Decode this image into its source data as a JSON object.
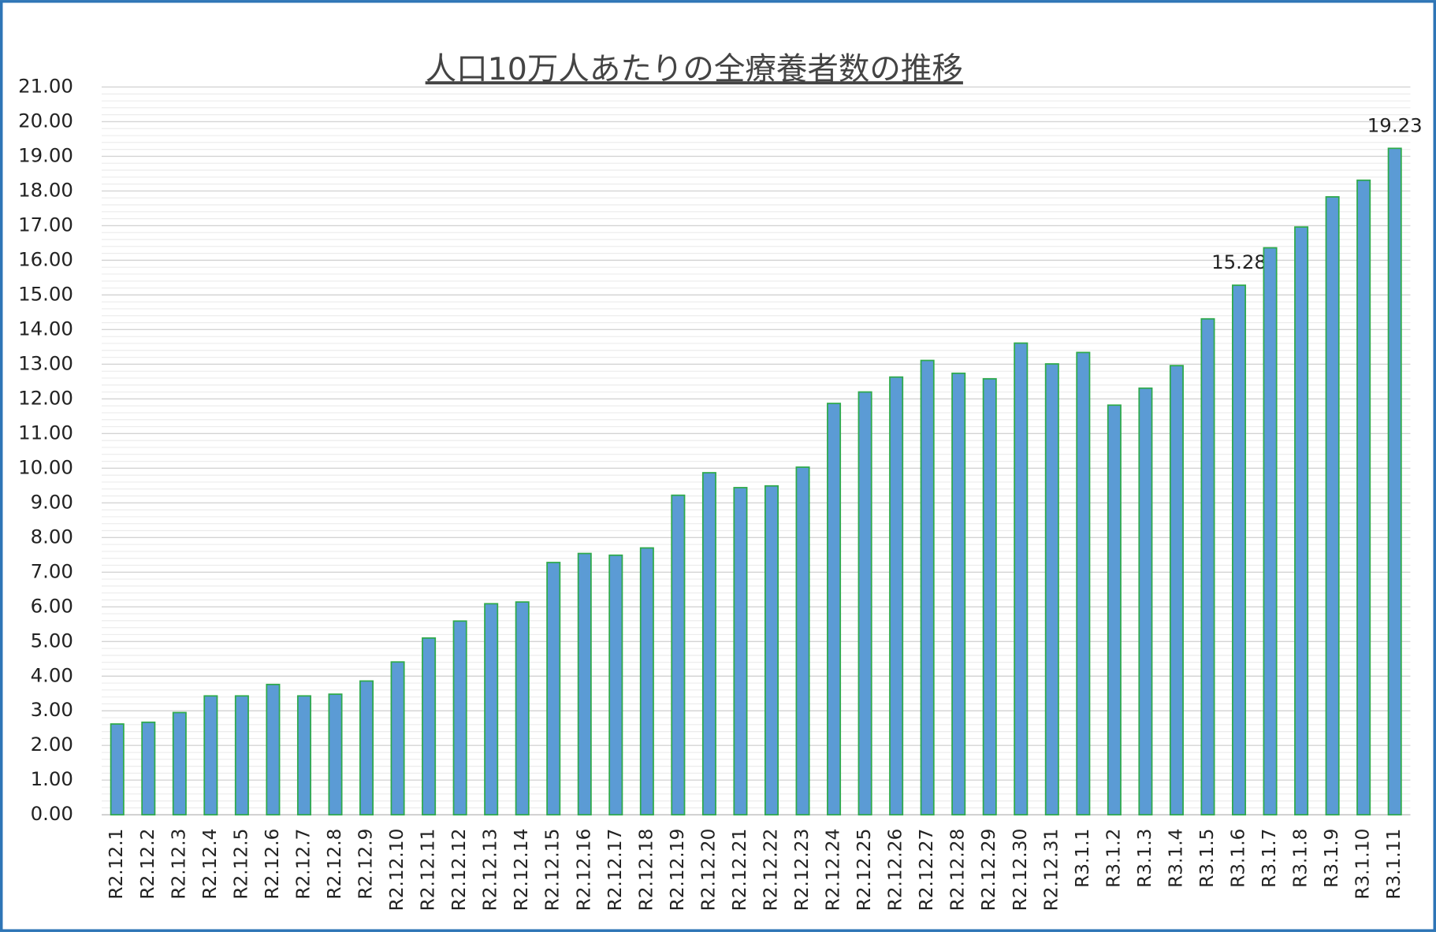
{
  "chart_data": {
    "type": "bar",
    "title": "人口10万人あたりの全療養者数の推移",
    "categories": [
      "R2.12.1",
      "R2.12.2",
      "R2.12.3",
      "R2.12.4",
      "R2.12.5",
      "R2.12.6",
      "R2.12.7",
      "R2.12.8",
      "R2.12.9",
      "R2.12.10",
      "R2.12.11",
      "R2.12.12",
      "R2.12.13",
      "R2.12.14",
      "R2.12.15",
      "R2.12.16",
      "R2.12.17",
      "R2.12.18",
      "R2.12.19",
      "R2.12.20",
      "R2.12.21",
      "R2.12.22",
      "R2.12.23",
      "R2.12.24",
      "R2.12.25",
      "R2.12.26",
      "R2.12.27",
      "R2.12.28",
      "R2.12.29",
      "R2.12.30",
      "R2.12.31",
      "R3.1.1",
      "R3.1.2",
      "R3.1.3",
      "R3.1.4",
      "R3.1.5",
      "R3.1.6",
      "R3.1.7",
      "R3.1.8",
      "R3.1.9",
      "R3.1.10",
      "R3.1.11"
    ],
    "values": [
      2.62,
      2.67,
      2.95,
      3.43,
      3.43,
      3.76,
      3.43,
      3.48,
      3.86,
      4.41,
      5.1,
      5.59,
      6.09,
      6.14,
      7.28,
      7.54,
      7.49,
      7.7,
      9.22,
      9.87,
      9.44,
      9.49,
      10.03,
      11.87,
      12.2,
      12.63,
      13.11,
      12.74,
      12.58,
      13.61,
      13.01,
      13.34,
      11.82,
      12.31,
      12.96,
      14.31,
      15.28,
      16.36,
      16.96,
      17.83,
      18.31,
      19.23
    ],
    "value_labels": [
      null,
      null,
      null,
      null,
      null,
      null,
      null,
      null,
      null,
      null,
      null,
      null,
      null,
      null,
      null,
      null,
      null,
      null,
      null,
      null,
      null,
      null,
      null,
      null,
      null,
      null,
      null,
      null,
      null,
      null,
      null,
      null,
      null,
      null,
      null,
      null,
      "15.28",
      null,
      null,
      null,
      null,
      "19.23"
    ],
    "color": "#5b9bd5",
    "edge_color": "#2eaa4a",
    "ylim": [
      0,
      21
    ],
    "yticks": [
      {
        "value": 0,
        "label": "0.00"
      },
      {
        "value": 1,
        "label": "1.00"
      },
      {
        "value": 2,
        "label": "2.00"
      },
      {
        "value": 3,
        "label": "3.00"
      },
      {
        "value": 4,
        "label": "4.00"
      },
      {
        "value": 5,
        "label": "5.00"
      },
      {
        "value": 6,
        "label": "6.00"
      },
      {
        "value": 7,
        "label": "7.00"
      },
      {
        "value": 8,
        "label": "8.00"
      },
      {
        "value": 9,
        "label": "9.00"
      },
      {
        "value": 10,
        "label": "10.00"
      },
      {
        "value": 11,
        "label": "11.00"
      },
      {
        "value": 12,
        "label": "12.00"
      },
      {
        "value": 13,
        "label": "13.00"
      },
      {
        "value": 14,
        "label": "14.00"
      },
      {
        "value": 15,
        "label": "15.00"
      },
      {
        "value": 16,
        "label": "16.00"
      },
      {
        "value": 17,
        "label": "17.00"
      },
      {
        "value": 18,
        "label": "18.00"
      },
      {
        "value": 19,
        "label": "19.00"
      },
      {
        "value": 20,
        "label": "20.00"
      },
      {
        "value": 21,
        "label": "21.00"
      }
    ],
    "grid": true
  }
}
